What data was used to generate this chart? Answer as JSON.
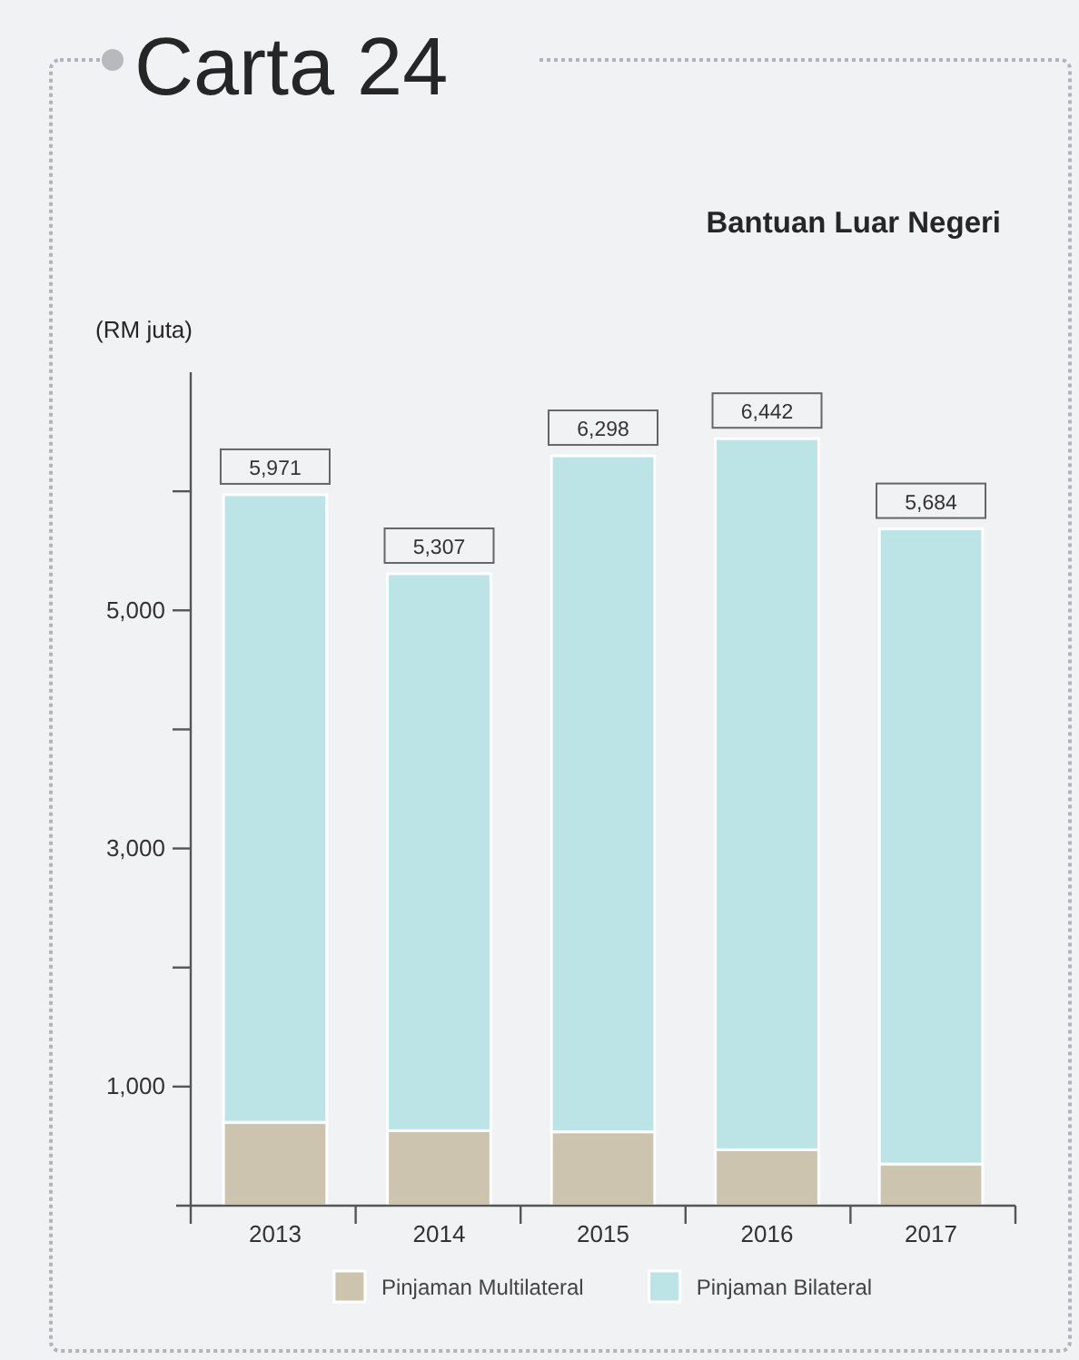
{
  "chart_data": {
    "type": "bar",
    "title": "Carta 24",
    "subtitle": "Bantuan Luar Negeri",
    "ylabel": "(RM juta)",
    "categories": [
      "2013",
      "2014",
      "2015",
      "2016",
      "2017"
    ],
    "series": [
      {
        "name": "Pinjaman Multilateral",
        "color": "#cdc4af",
        "values": [
          700,
          630,
          620,
          470,
          350
        ]
      },
      {
        "name": "Pinjaman Bilateral",
        "color": "#bce3e5",
        "values": [
          5271,
          4677,
          5678,
          5972,
          5334
        ]
      }
    ],
    "stacked": true,
    "totals": [
      "5,971",
      "5,307",
      "6,298",
      "6,442",
      "5,684"
    ],
    "ylim": [
      0,
      7000
    ],
    "yticks": [
      {
        "value": 1000,
        "label": "1,000"
      },
      {
        "value": 2000,
        "label": null
      },
      {
        "value": 3000,
        "label": "3,000"
      },
      {
        "value": 4000,
        "label": null
      },
      {
        "value": 5000,
        "label": "5,000"
      },
      {
        "value": 6000,
        "label": null
      }
    ],
    "legend": "bottom"
  }
}
